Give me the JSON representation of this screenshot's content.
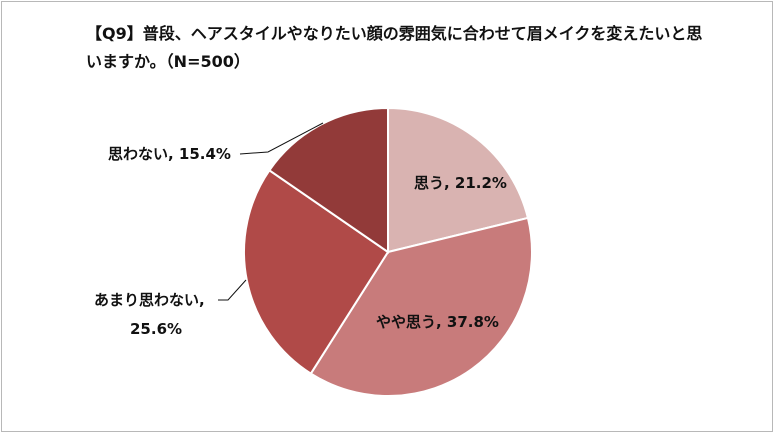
{
  "chart_data": {
    "type": "pie",
    "title": "【Q9】普段、ヘアスタイルやなりたい顔の雰囲気に合わせて眉メイクを変えたいと思いますか。（N=500）",
    "n": 500,
    "slices": [
      {
        "label": "思う",
        "value": 21.2,
        "display": "思う, 21.2%",
        "color": "#d9b3b1"
      },
      {
        "label": "やや思う",
        "value": 37.8,
        "display": "やや思う, 37.8%",
        "color": "#c87b7b"
      },
      {
        "label": "あまり思わない",
        "value": 25.6,
        "display_line1": "あまり思わない,",
        "display_line2": "25.6%",
        "color": "#b04a48"
      },
      {
        "label": "思わない",
        "value": 15.4,
        "display": "思わない, 15.4%",
        "color": "#923a39"
      }
    ],
    "legend": "none",
    "start_angle": "12 o'clock",
    "direction": "clockwise"
  }
}
